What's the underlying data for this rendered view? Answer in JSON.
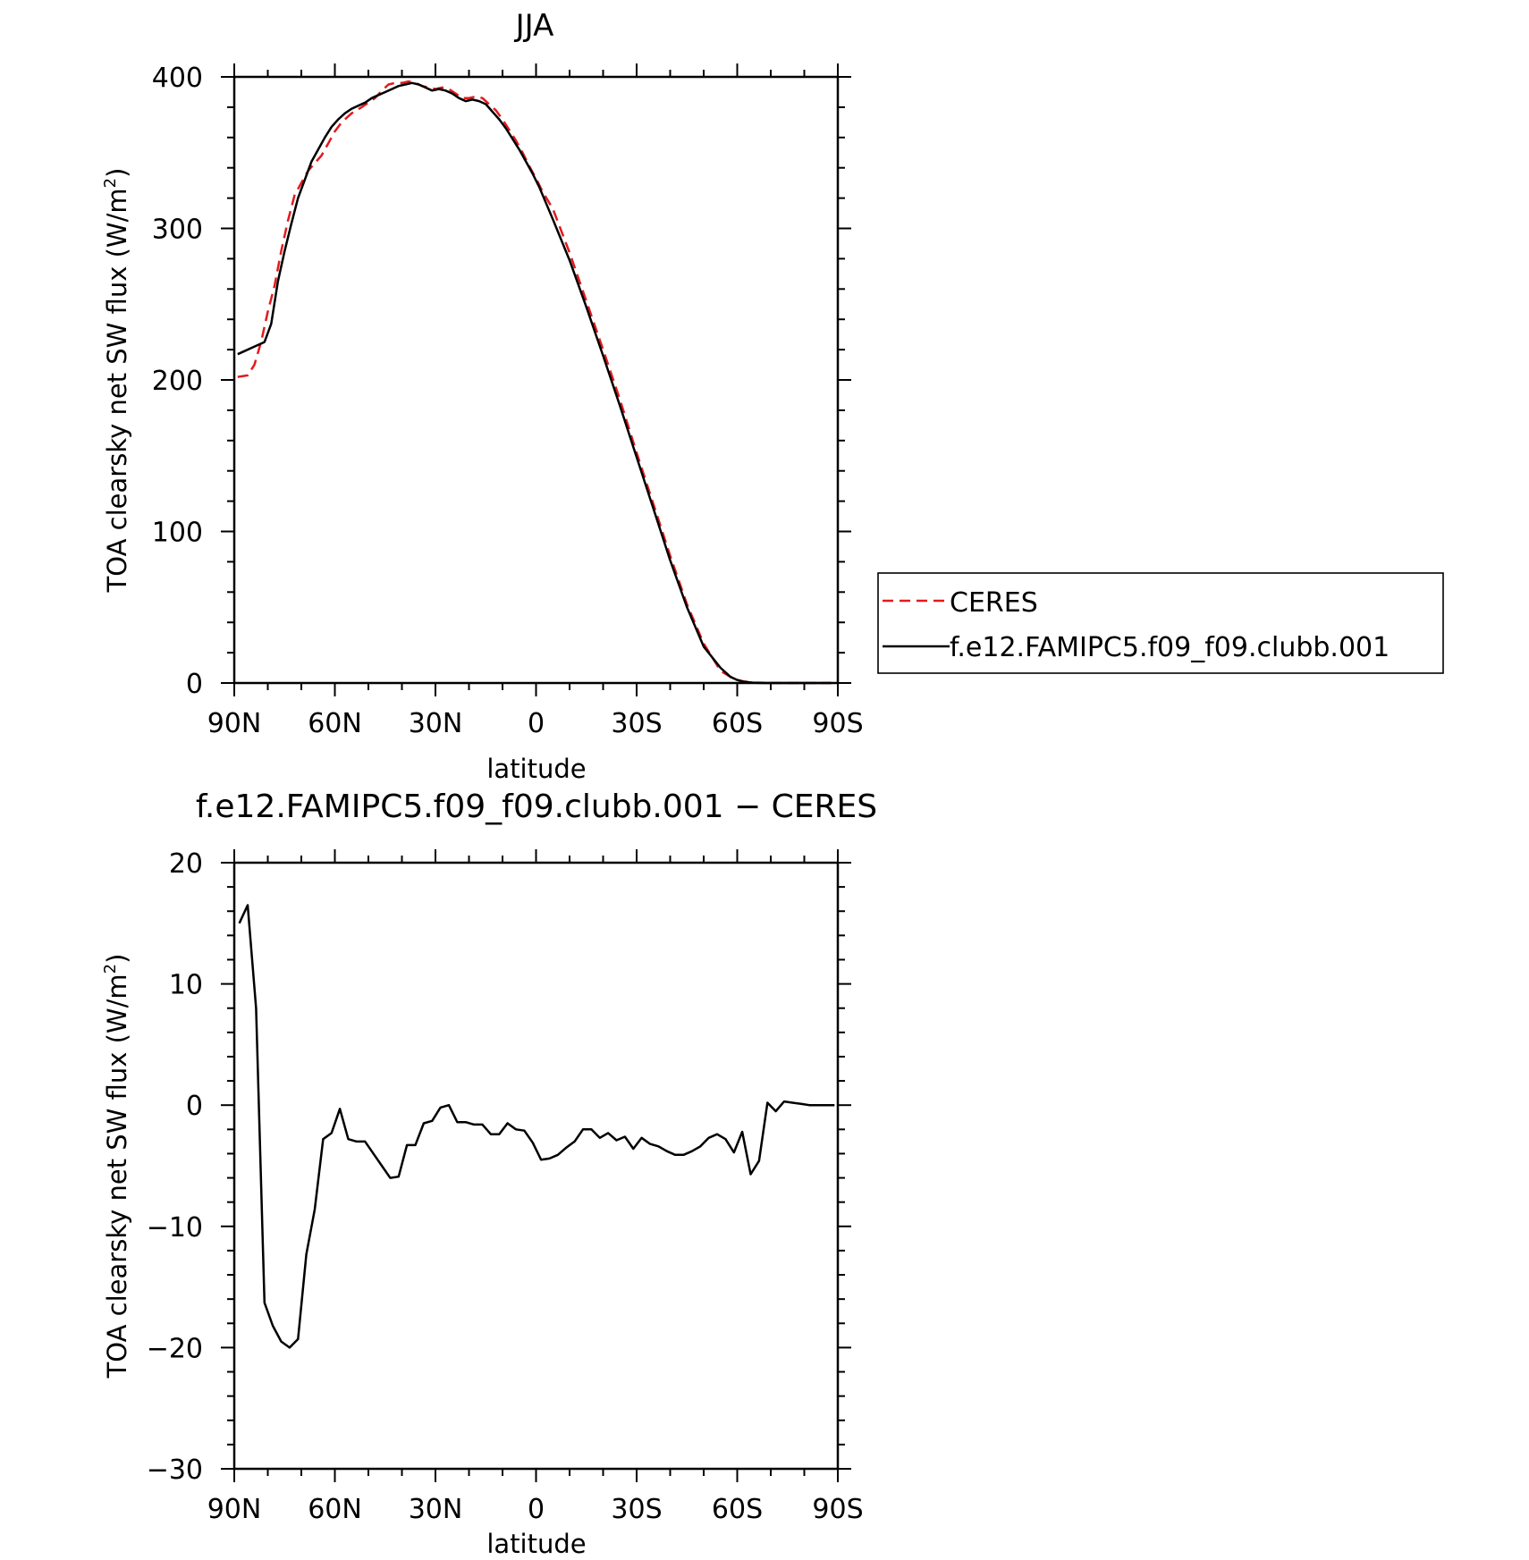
{
  "chart_data": [
    {
      "type": "line",
      "title": "JJA",
      "xlabel": "latitude",
      "ylabel": "TOA clearsky net SW flux (W/m²)",
      "ylabel_main": "TOA clearsky net SW flux (W/m",
      "ylabel_sup": "2",
      "ylabel_end": ")",
      "xlim": [
        90,
        -90
      ],
      "ylim": [
        0,
        400
      ],
      "x_ticks": [
        {
          "value": 90,
          "label": "90N"
        },
        {
          "value": 60,
          "label": "60N"
        },
        {
          "value": 30,
          "label": "30N"
        },
        {
          "value": 0,
          "label": "0"
        },
        {
          "value": -30,
          "label": "30S"
        },
        {
          "value": -60,
          "label": "60S"
        },
        {
          "value": -90,
          "label": "90S"
        }
      ],
      "y_ticks": [
        {
          "value": 0,
          "label": "0"
        },
        {
          "value": 100,
          "label": "100"
        },
        {
          "value": 200,
          "label": "200"
        },
        {
          "value": 300,
          "label": "300"
        },
        {
          "value": 400,
          "label": "400"
        }
      ],
      "legend": {
        "position": "right",
        "entries": [
          "CERES",
          "f.e12.FAMIPC5.f09_f09.clubb.001"
        ]
      },
      "grid": false,
      "series": [
        {
          "name": "CERES",
          "color": "#e31a1c",
          "dash": "dashed",
          "x": [
            89,
            86,
            84,
            82,
            80,
            78,
            76,
            74,
            72,
            70,
            68,
            66,
            64,
            62,
            60,
            58,
            55,
            52,
            50,
            48,
            46,
            44,
            42,
            40,
            38,
            36,
            34,
            32,
            30,
            28,
            26,
            24,
            22,
            20,
            18,
            16,
            14,
            12,
            10,
            8,
            6,
            4,
            2,
            0,
            -2,
            -5,
            -10,
            -15,
            -20,
            -25,
            -30,
            -35,
            -40,
            -45,
            -50,
            -55,
            -58,
            -60,
            -62,
            -65,
            -68,
            -70,
            -72,
            -75,
            -78,
            -80,
            -85,
            -88
          ],
          "values": [
            202,
            203,
            210,
            225,
            245,
            262,
            285,
            305,
            322,
            330,
            338,
            343,
            348,
            356,
            364,
            370,
            376,
            380,
            383,
            386,
            391,
            395,
            396,
            396,
            397,
            396,
            394,
            393,
            392,
            393,
            392,
            389,
            386,
            386,
            387,
            386,
            382,
            378,
            372,
            365,
            358,
            350,
            341,
            333,
            324,
            313,
            284,
            252,
            220,
            187,
            152,
            118,
            84,
            52,
            26,
            8,
            4,
            2,
            1,
            0.3,
            0.1,
            0,
            0,
            0,
            0,
            0,
            0,
            0
          ]
        },
        {
          "name": "f.e12.FAMIPC5.f09_f09.clubb.001",
          "color": "#000000",
          "dash": "solid",
          "x": [
            89,
            87,
            85,
            83,
            81,
            79,
            77,
            75,
            73,
            71,
            69,
            67,
            65,
            63,
            61,
            59,
            57,
            55,
            53,
            51,
            49,
            47,
            45,
            43,
            41,
            39,
            37,
            35,
            33,
            31,
            29,
            27,
            25,
            23,
            21,
            19,
            17,
            15,
            13,
            11,
            9,
            7,
            5,
            3,
            1,
            -1,
            -5,
            -10,
            -15,
            -20,
            -25,
            -30,
            -35,
            -40,
            -45,
            -50,
            -55,
            -58,
            -60,
            -62,
            -65,
            -68,
            -70,
            -72,
            -75,
            -78,
            -80,
            -85,
            -88
          ],
          "values": [
            217,
            219,
            221,
            223,
            225,
            237,
            265,
            285,
            303,
            320,
            332,
            344,
            352,
            360,
            367,
            372,
            376,
            379,
            381,
            383,
            386,
            388,
            390,
            392,
            394,
            395,
            396,
            395,
            393,
            391,
            392,
            391,
            389,
            386,
            384,
            385,
            384,
            382,
            377,
            372,
            366,
            359,
            352,
            344,
            336,
            327,
            306,
            279,
            248,
            216,
            183,
            149,
            115,
            81,
            50,
            24,
            10,
            4,
            2,
            0.8,
            0.2,
            0,
            0,
            0,
            0,
            0,
            0,
            0,
            0
          ]
        }
      ]
    },
    {
      "type": "line",
      "title": "f.e12.FAMIPC5.f09_f09.clubb.001 − CERES",
      "xlabel": "latitude",
      "ylabel": "TOA clearsky net SW flux (W/m²)",
      "ylabel_main": "TOA clearsky net SW flux (W/m",
      "ylabel_sup": "2",
      "ylabel_end": ")",
      "xlim": [
        90,
        -90
      ],
      "ylim": [
        -30,
        20
      ],
      "x_ticks": [
        {
          "value": 90,
          "label": "90N"
        },
        {
          "value": 60,
          "label": "60N"
        },
        {
          "value": 30,
          "label": "30N"
        },
        {
          "value": 0,
          "label": "0"
        },
        {
          "value": -30,
          "label": "30S"
        },
        {
          "value": -60,
          "label": "60S"
        },
        {
          "value": -90,
          "label": "90S"
        }
      ],
      "y_ticks": [
        {
          "value": -30,
          "label": "−30"
        },
        {
          "value": -20,
          "label": "−20"
        },
        {
          "value": -10,
          "label": "−10"
        },
        {
          "value": 0,
          "label": "0"
        },
        {
          "value": 10,
          "label": "10"
        },
        {
          "value": 20,
          "label": "20"
        }
      ],
      "grid": false,
      "series": [
        {
          "color": "#000000",
          "dash": "solid",
          "x": [
            88.5,
            86,
            83.5,
            81,
            78.5,
            76,
            73.5,
            71,
            68.5,
            66,
            63.5,
            61,
            58.5,
            56,
            53.5,
            51,
            48.5,
            46,
            43.5,
            41,
            38.5,
            36,
            33.5,
            31,
            28.5,
            26,
            23.5,
            21,
            18.5,
            16,
            13.5,
            11,
            8.5,
            6,
            3.5,
            1,
            -1.5,
            -4,
            -6.5,
            -9,
            -11.5,
            -14,
            -16.5,
            -19,
            -21.5,
            -24,
            -26.5,
            -29,
            -31.5,
            -34,
            -36.5,
            -39,
            -41.5,
            -44,
            -46.5,
            -49,
            -51.5,
            -54,
            -56.5,
            -59,
            -61.5,
            -64,
            -66.5,
            -69,
            -71.5,
            -74,
            -76.5,
            -79,
            -81.5,
            -84,
            -86.5,
            -89
          ],
          "values": [
            15,
            16.5,
            8,
            -16.3,
            -18.2,
            -19.5,
            -20,
            -19.3,
            -12.3,
            -8.6,
            -2.8,
            -2.3,
            -0.3,
            -2.8,
            -3,
            -3,
            -4,
            -5,
            -6,
            -5.9,
            -3.3,
            -3.3,
            -1.5,
            -1.3,
            -0.2,
            0,
            -1.4,
            -1.4,
            -1.6,
            -1.6,
            -2.4,
            -2.4,
            -1.5,
            -2,
            -2.1,
            -3.1,
            -4.5,
            -4.4,
            -4.1,
            -3.5,
            -3,
            -2,
            -2,
            -2.7,
            -2.3,
            -2.9,
            -2.6,
            -3.6,
            -2.7,
            -3.2,
            -3.4,
            -3.8,
            -4.1,
            -4.1,
            -3.8,
            -3.4,
            -2.7,
            -2.4,
            -2.8,
            -3.9,
            -2.2,
            -5.7,
            -4.6,
            0.2,
            -0.5,
            0.3,
            0.2,
            0.1,
            0,
            0,
            0,
            0
          ]
        }
      ]
    }
  ]
}
